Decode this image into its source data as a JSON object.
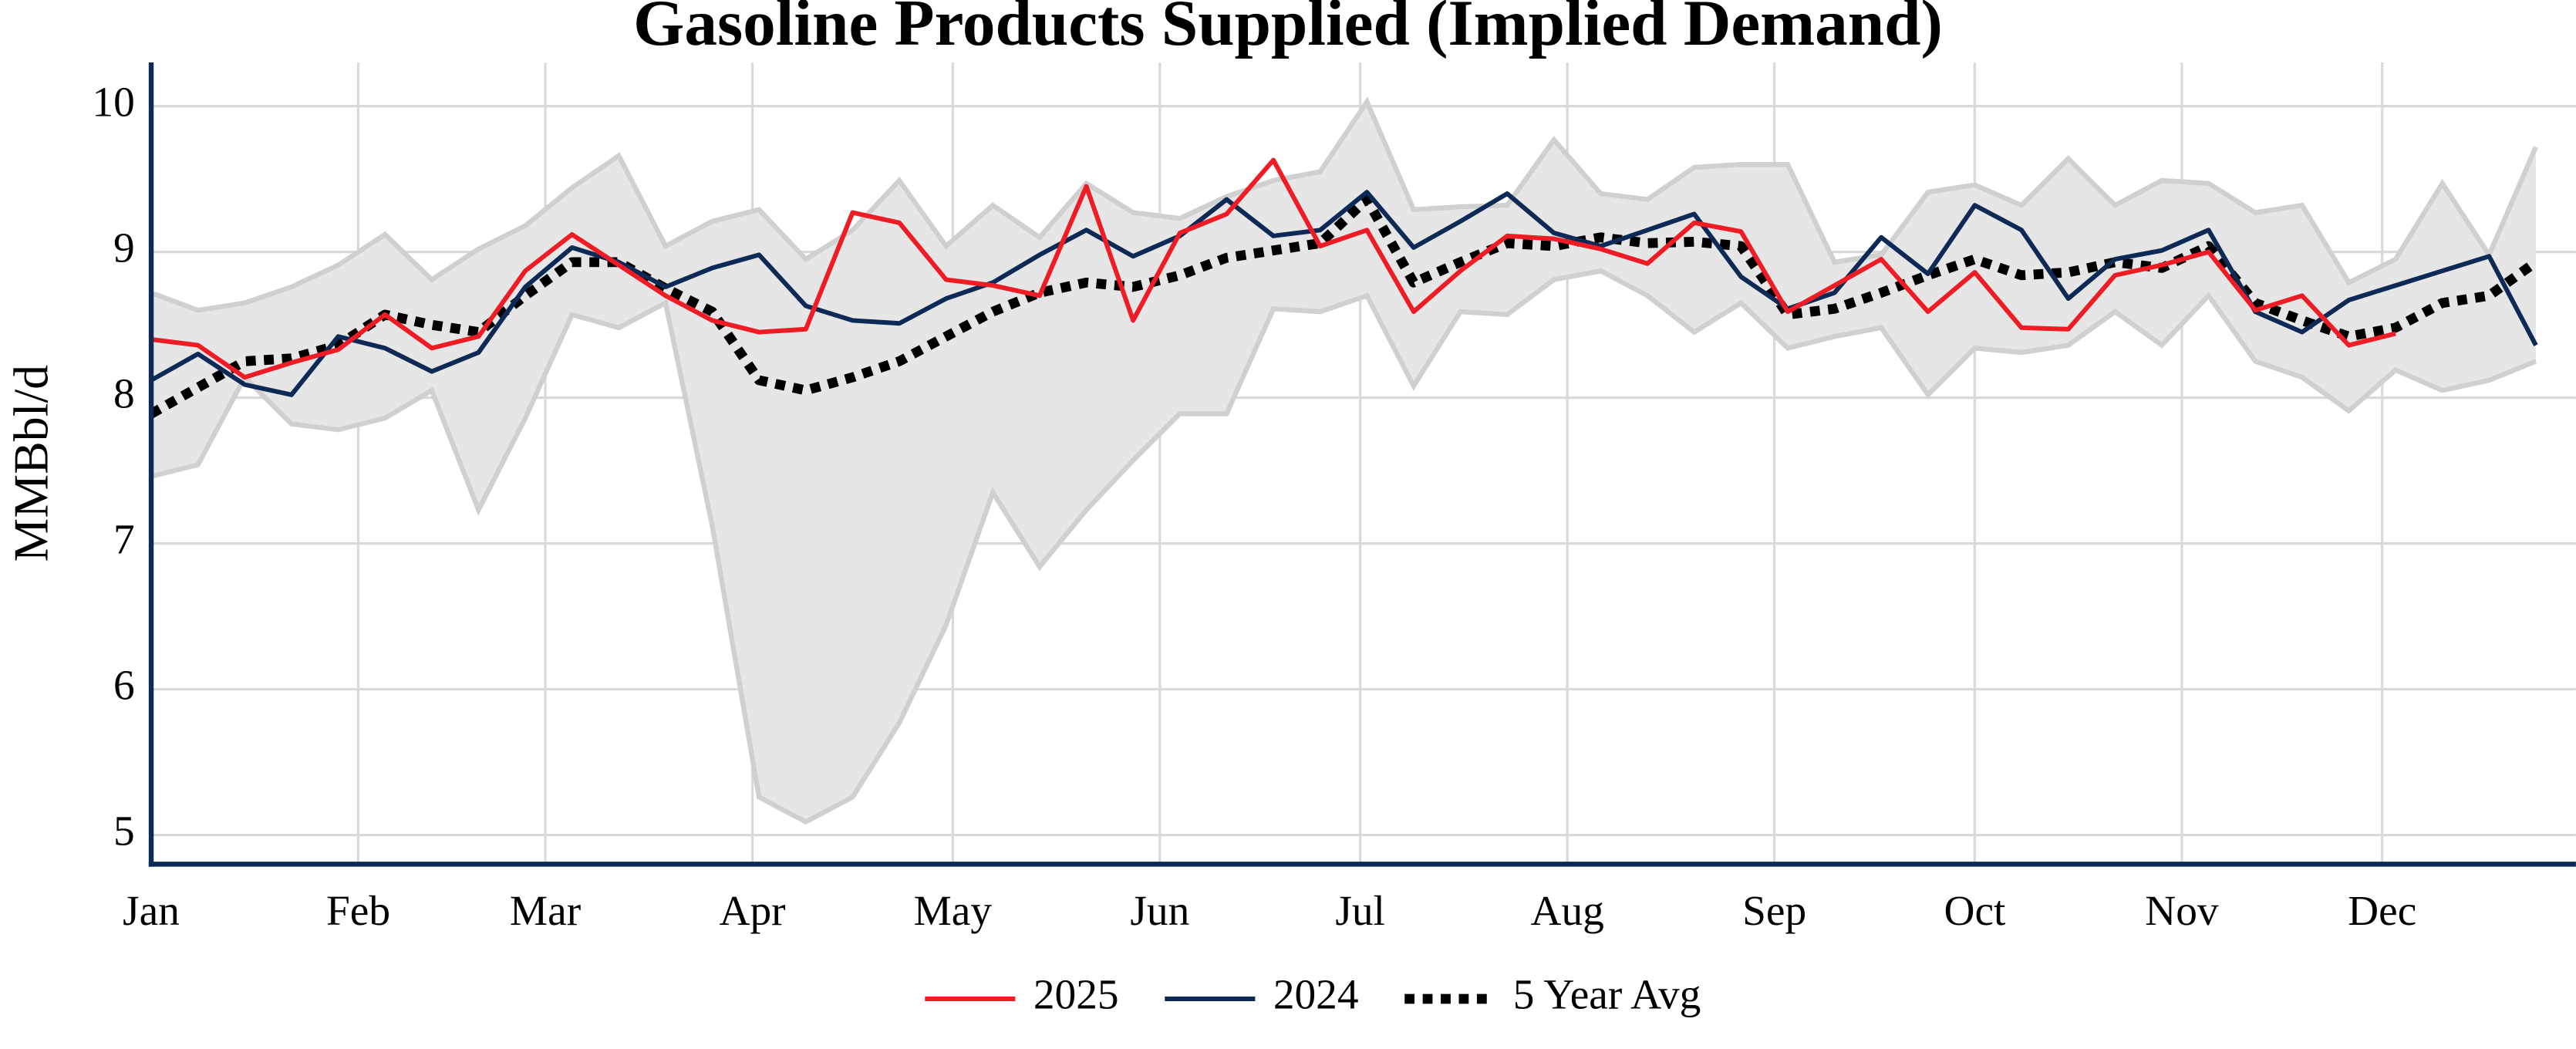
{
  "chart_data": {
    "type": "line",
    "title": "Gasoline Products Supplied (Implied Demand)",
    "y_label": "MMBbl/d",
    "x": [
      0,
      7,
      14,
      21,
      28,
      35,
      42,
      49,
      56,
      63,
      70,
      77,
      84,
      91,
      98,
      105,
      112,
      119,
      126,
      133,
      140,
      147,
      154,
      161,
      168,
      175,
      182,
      189,
      196,
      203,
      210,
      217,
      224,
      231,
      238,
      245,
      252,
      259,
      266,
      273,
      280,
      287,
      294,
      301,
      308,
      315,
      322,
      329,
      336,
      343,
      350,
      357
    ],
    "xlim": [
      0,
      363
    ],
    "xticks": [
      {
        "value": 0,
        "label": "Jan"
      },
      {
        "value": 31,
        "label": "Feb"
      },
      {
        "value": 59,
        "label": "Mar"
      },
      {
        "value": 90,
        "label": "Apr"
      },
      {
        "value": 120,
        "label": "May"
      },
      {
        "value": 151,
        "label": "Jun"
      },
      {
        "value": 181,
        "label": "Jul"
      },
      {
        "value": 212,
        "label": "Aug"
      },
      {
        "value": 243,
        "label": "Sep"
      },
      {
        "value": 273,
        "label": "Oct"
      },
      {
        "value": 304,
        "label": "Nov"
      },
      {
        "value": 334,
        "label": "Dec"
      }
    ],
    "ylim": [
      4.8,
      10.3
    ],
    "yticks": [
      5,
      6,
      7,
      8,
      9,
      10
    ],
    "grid": true,
    "legend": "bottom",
    "range": {
      "color": "#e6e6e6",
      "edge_color": "#d0d0d0",
      "low": [
        7.46,
        7.54,
        8.14,
        7.82,
        7.78,
        7.86,
        8.05,
        7.23,
        7.86,
        8.57,
        8.48,
        8.65,
        7.12,
        5.26,
        5.09,
        5.26,
        5.77,
        6.44,
        7.35,
        6.84,
        7.23,
        7.57,
        7.89,
        7.89,
        8.61,
        8.59,
        8.7,
        8.08,
        8.59,
        8.57,
        8.81,
        8.87,
        8.7,
        8.45,
        8.65,
        8.34,
        8.42,
        8.48,
        8.02,
        8.34,
        8.31,
        8.36,
        8.59,
        8.36,
        8.7,
        8.25,
        8.14,
        7.91,
        8.19,
        8.05,
        8.12,
        8.25
      ],
      "high": [
        8.72,
        8.6,
        8.65,
        8.76,
        8.91,
        9.12,
        8.81,
        9.02,
        9.18,
        9.44,
        9.66,
        9.04,
        9.21,
        9.29,
        8.95,
        9.15,
        9.49,
        9.04,
        9.32,
        9.1,
        9.47,
        9.27,
        9.23,
        9.38,
        9.49,
        9.55,
        10.03,
        9.29,
        9.31,
        9.32,
        9.77,
        9.4,
        9.36,
        9.58,
        9.6,
        9.6,
        8.93,
        8.98,
        9.41,
        9.46,
        9.32,
        9.64,
        9.32,
        9.49,
        9.47,
        9.27,
        9.32,
        8.79,
        8.95,
        9.47,
        8.98,
        9.72
      ]
    },
    "series": [
      {
        "name": "2025",
        "color": "#ee1c25",
        "dash": "solid",
        "values": [
          8.4,
          8.36,
          8.14,
          8.24,
          8.33,
          8.57,
          8.34,
          8.42,
          8.87,
          9.12,
          8.91,
          8.7,
          8.53,
          8.45,
          8.47,
          9.27,
          9.2,
          8.81,
          8.77,
          8.7,
          9.45,
          8.53,
          9.13,
          9.26,
          9.63,
          9.04,
          9.15,
          8.59,
          8.87,
          9.11,
          9.09,
          9.02,
          8.92,
          9.2,
          9.14,
          8.59,
          8.77,
          8.95,
          8.59,
          8.86,
          8.48,
          8.47,
          8.84,
          8.91,
          9.0,
          8.6,
          8.7,
          8.36,
          8.44,
          null,
          null,
          null
        ]
      },
      {
        "name": "2024",
        "color": "#0c2a55",
        "dash": "solid",
        "values": [
          8.12,
          8.3,
          8.09,
          8.02,
          8.42,
          8.34,
          8.18,
          8.31,
          8.76,
          9.03,
          8.93,
          8.76,
          8.89,
          8.98,
          8.63,
          8.53,
          8.51,
          8.68,
          8.79,
          8.98,
          9.15,
          8.97,
          9.11,
          9.36,
          9.11,
          9.15,
          9.41,
          9.03,
          9.21,
          9.4,
          9.13,
          9.04,
          9.15,
          9.26,
          8.83,
          8.61,
          8.72,
          9.1,
          8.85,
          9.32,
          9.15,
          8.68,
          8.95,
          9.01,
          9.15,
          8.59,
          8.45,
          8.67,
          8.77,
          8.87,
          8.97,
          8.36
        ]
      },
      {
        "name": "5 Year Avg",
        "color": "#000000",
        "dash": "dotted",
        "values": [
          7.89,
          8.07,
          8.25,
          8.27,
          8.36,
          8.57,
          8.5,
          8.45,
          8.7,
          8.93,
          8.93,
          8.75,
          8.59,
          8.12,
          8.05,
          8.14,
          8.25,
          8.42,
          8.59,
          8.72,
          8.79,
          8.76,
          8.84,
          8.96,
          9.01,
          9.06,
          9.36,
          8.79,
          8.93,
          9.06,
          9.04,
          9.1,
          9.06,
          9.07,
          9.04,
          8.57,
          8.61,
          8.72,
          8.84,
          8.95,
          8.84,
          8.86,
          8.93,
          8.89,
          9.04,
          8.65,
          8.53,
          8.42,
          8.48,
          8.65,
          8.7,
          8.93
        ]
      }
    ]
  }
}
